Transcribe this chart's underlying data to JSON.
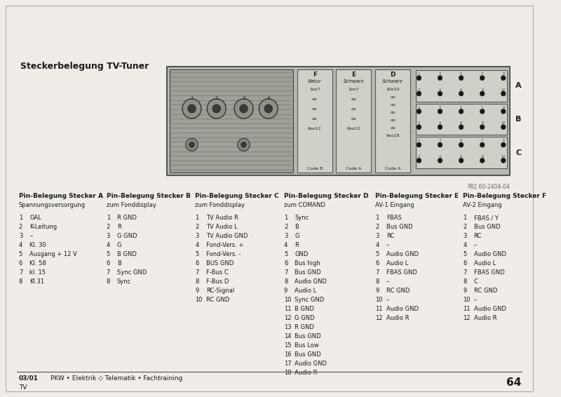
{
  "bg_color": "#f0ede8",
  "page_bg": "#f0ede8",
  "title": "Steckerbelegung TV-Tuner",
  "diagram_ref": "P82.60-2404-04",
  "connector_sections": [
    {
      "header": "Pin-Belegung Stecker A",
      "subheader": "Spannungsversorgung",
      "pins": [
        [
          1,
          "GAL"
        ],
        [
          2,
          "K-Leitung"
        ],
        [
          3,
          "–"
        ],
        [
          4,
          "Kl. 30"
        ],
        [
          5,
          "Ausgang + 12 V"
        ],
        [
          6,
          "Kl. 58"
        ],
        [
          7,
          "kl. 15"
        ],
        [
          8,
          "Kl.31"
        ]
      ]
    },
    {
      "header": "Pin-Belegung Stecker B",
      "subheader": "zum Fonddisplay",
      "pins": [
        [
          1,
          "R GND"
        ],
        [
          2,
          "R"
        ],
        [
          3,
          "G GND"
        ],
        [
          4,
          "G"
        ],
        [
          5,
          "B GND"
        ],
        [
          6,
          "B"
        ],
        [
          7,
          "Sync GND"
        ],
        [
          8,
          "Sync"
        ]
      ]
    },
    {
      "header": "Pin-Belegung Stecker C",
      "subheader": "zum Fonddisplay",
      "pins": [
        [
          1,
          "TV Audio R"
        ],
        [
          2,
          "TV Audio L"
        ],
        [
          3,
          "TV Audio GND"
        ],
        [
          4,
          "Fond-Vers. +"
        ],
        [
          5,
          "Fond-Vers. -"
        ],
        [
          6,
          "BUS GND"
        ],
        [
          7,
          "F-Bus C"
        ],
        [
          8,
          "F-Bus D"
        ],
        [
          9,
          "RC-Signal"
        ],
        [
          10,
          "RC GND"
        ]
      ]
    },
    {
      "header": "Pin-Belegung Stecker D",
      "subheader": "zum COMAND",
      "pins": [
        [
          1,
          "Sync"
        ],
        [
          2,
          "B"
        ],
        [
          3,
          "G"
        ],
        [
          4,
          "R"
        ],
        [
          5,
          "GND"
        ],
        [
          6,
          "Bus high"
        ],
        [
          7,
          "Bus GND"
        ],
        [
          8,
          "Audio GND"
        ],
        [
          9,
          "Audio L"
        ],
        [
          10,
          "Sync GND"
        ],
        [
          11,
          "B GND"
        ],
        [
          12,
          "G GND"
        ],
        [
          13,
          "R GND"
        ],
        [
          14,
          "Bus GND"
        ],
        [
          15,
          "Bus Low"
        ],
        [
          16,
          "Bus GND"
        ],
        [
          17,
          "Audio GND"
        ],
        [
          18,
          "Audio R"
        ]
      ]
    },
    {
      "header": "Pin-Belegung Stecker E",
      "subheader": "AV-1 Eingang",
      "pins": [
        [
          1,
          "FBAS"
        ],
        [
          2,
          "Bus GND"
        ],
        [
          3,
          "RC"
        ],
        [
          4,
          "–"
        ],
        [
          5,
          "Audio GND"
        ],
        [
          6,
          "Audio L"
        ],
        [
          7,
          "FBAS GND"
        ],
        [
          8,
          "–"
        ],
        [
          9,
          "RC GND"
        ],
        [
          10,
          "–"
        ],
        [
          11,
          "Audio GND"
        ],
        [
          12,
          "Audio R"
        ]
      ]
    },
    {
      "header": "Pin-Belegung Stecker F",
      "subheader": "AV-2 Eingang",
      "pins": [
        [
          1,
          "FBAS / Y"
        ],
        [
          2,
          "Bus GND"
        ],
        [
          3,
          "RC"
        ],
        [
          4,
          "–"
        ],
        [
          5,
          "Audio GND"
        ],
        [
          6,
          "Audio L"
        ],
        [
          7,
          "FBAS GND"
        ],
        [
          8,
          "C"
        ],
        [
          9,
          "RC GND"
        ],
        [
          10,
          "–"
        ],
        [
          11,
          "Audio GND"
        ],
        [
          12,
          "Audio R"
        ]
      ]
    }
  ]
}
